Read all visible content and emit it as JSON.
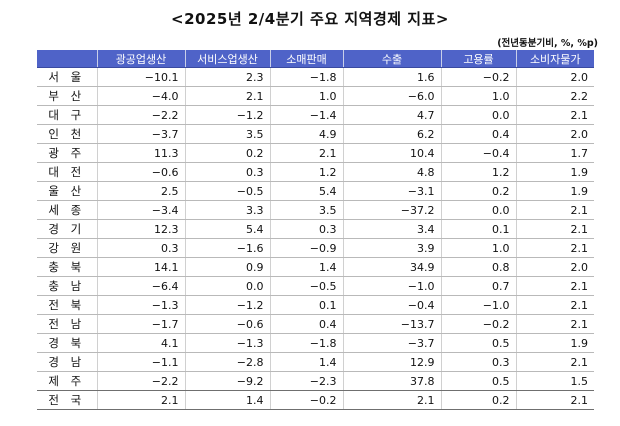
{
  "title": "<2025년 2/4분기 주요 지역경제 지표>",
  "unit_note": "(전년동분기비, %, %p)",
  "table": {
    "corner": "",
    "headers": [
      "광공업생산",
      "서비스업생산",
      "소매판매",
      "수출",
      "고용률",
      "소비자물가"
    ],
    "rows": [
      {
        "region": "서 울",
        "values": [
          "−10.1",
          "2.3",
          "−1.8",
          "1.6",
          "−0.2",
          "2.0"
        ]
      },
      {
        "region": "부 산",
        "values": [
          "−4.0",
          "2.1",
          "1.0",
          "−6.0",
          "1.0",
          "2.2"
        ]
      },
      {
        "region": "대 구",
        "values": [
          "−2.2",
          "−1.2",
          "−1.4",
          "4.7",
          "0.0",
          "2.1"
        ]
      },
      {
        "region": "인 천",
        "values": [
          "−3.7",
          "3.5",
          "4.9",
          "6.2",
          "0.4",
          "2.0"
        ]
      },
      {
        "region": "광 주",
        "values": [
          "11.3",
          "0.2",
          "2.1",
          "10.4",
          "−0.4",
          "1.7"
        ]
      },
      {
        "region": "대 전",
        "values": [
          "−0.6",
          "0.3",
          "1.2",
          "4.8",
          "1.2",
          "1.9"
        ]
      },
      {
        "region": "울 산",
        "values": [
          "2.5",
          "−0.5",
          "5.4",
          "−3.1",
          "0.2",
          "1.9"
        ]
      },
      {
        "region": "세 종",
        "values": [
          "−3.4",
          "3.3",
          "3.5",
          "−37.2",
          "0.0",
          "2.1"
        ]
      },
      {
        "region": "경 기",
        "values": [
          "12.3",
          "5.4",
          "0.3",
          "3.4",
          "0.1",
          "2.1"
        ]
      },
      {
        "region": "강 원",
        "values": [
          "0.3",
          "−1.6",
          "−0.9",
          "3.9",
          "1.0",
          "2.1"
        ]
      },
      {
        "region": "충 북",
        "values": [
          "14.1",
          "0.9",
          "1.4",
          "34.9",
          "0.8",
          "2.0"
        ]
      },
      {
        "region": "충 남",
        "values": [
          "−6.4",
          "0.0",
          "−0.5",
          "−1.0",
          "0.7",
          "2.1"
        ]
      },
      {
        "region": "전 북",
        "values": [
          "−1.3",
          "−1.2",
          "0.1",
          "−0.4",
          "−1.0",
          "2.1"
        ]
      },
      {
        "region": "전 남",
        "values": [
          "−1.7",
          "−0.6",
          "0.4",
          "−13.7",
          "−0.2",
          "2.1"
        ]
      },
      {
        "region": "경 북",
        "values": [
          "4.1",
          "−1.3",
          "−1.8",
          "−3.7",
          "0.5",
          "1.9"
        ]
      },
      {
        "region": "경 남",
        "values": [
          "−1.1",
          "−2.8",
          "1.4",
          "12.9",
          "0.3",
          "2.1"
        ]
      },
      {
        "region": "제 주",
        "values": [
          "−2.2",
          "−9.2",
          "−2.3",
          "37.8",
          "0.5",
          "1.5"
        ]
      }
    ],
    "total": {
      "region": "전 국",
      "values": [
        "2.1",
        "1.4",
        "−0.2",
        "2.1",
        "0.2",
        "2.1"
      ]
    }
  }
}
